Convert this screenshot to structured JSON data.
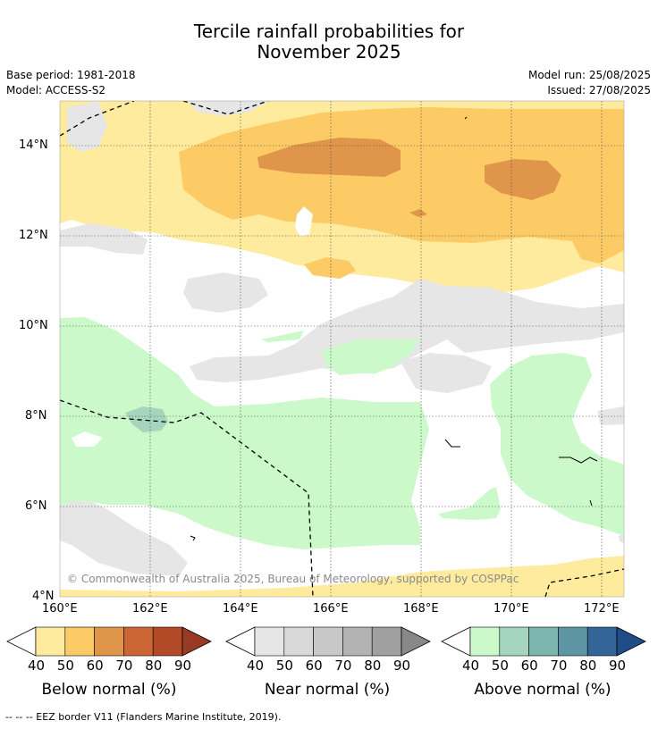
{
  "title": {
    "line1": "Tercile rainfall probabilities for",
    "line2": "November 2025"
  },
  "meta": {
    "base_period": "Base period: 1981-2018",
    "model": "Model: ACCESS-S2",
    "model_run": "Model run: 25/08/2025",
    "issued": "Issued: 27/08/2025"
  },
  "copyright": "© Commonwealth of Australia 2025, Bureau of Meteorology, supported by COSPPac",
  "footnote": "--  --  -- EEZ border V11 (Flanders Marine Institute, 2019).",
  "chart_data": {
    "type": "heatmap",
    "title": "Tercile rainfall probabilities for November 2025",
    "x_ticks": [
      "160°E",
      "162°E",
      "164°E",
      "166°E",
      "168°E",
      "170°E",
      "172°E"
    ],
    "y_ticks": [
      "4°N",
      "6°N",
      "8°N",
      "10°N",
      "12°N",
      "14°N"
    ],
    "xlim": [
      160,
      172.5
    ],
    "ylim": [
      4,
      15
    ],
    "grid": true,
    "colorbars": [
      {
        "label": "Below normal (%)",
        "ticks": [
          "40",
          "50",
          "60",
          "70",
          "80",
          "90"
        ],
        "colors": [
          "#ffffff",
          "#feeb9e",
          "#fdcb66",
          "#e0964a",
          "#cc6534",
          "#b24a28",
          "#983a24"
        ]
      },
      {
        "label": "Near normal (%)",
        "ticks": [
          "40",
          "50",
          "60",
          "70",
          "80",
          "90"
        ],
        "colors": [
          "#ffffff",
          "#e6e6e6",
          "#d9d9d9",
          "#c8c8c8",
          "#b3b3b3",
          "#a0a0a0",
          "#888888"
        ]
      },
      {
        "label": "Above normal (%)",
        "ticks": [
          "40",
          "50",
          "60",
          "70",
          "80",
          "90"
        ],
        "colors": [
          "#ffffff",
          "#ccf9c9",
          "#a5d6bd",
          "#7db5af",
          "#5d95a5",
          "#336598",
          "#1e4d87"
        ]
      }
    ]
  }
}
